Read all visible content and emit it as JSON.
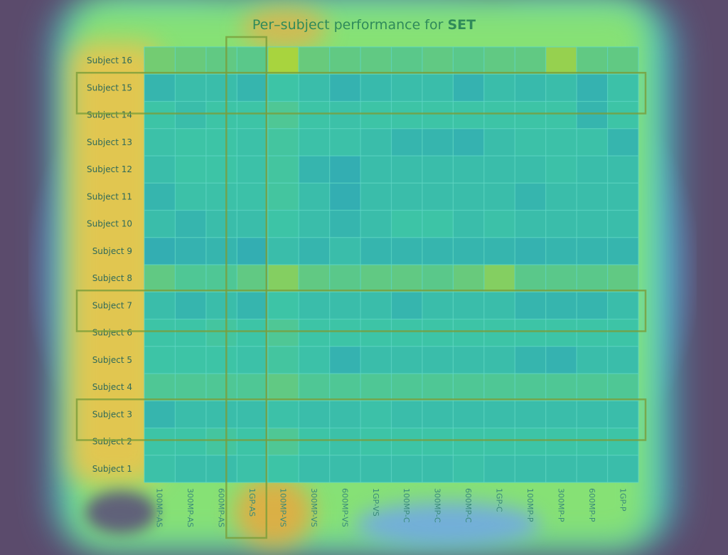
{
  "chart_data": {
    "type": "heatmap",
    "title_prefix": "Per–subject performance for ",
    "title_emph": "SET",
    "rows": [
      "Subject 16",
      "Subject 15",
      "Subject 14",
      "Subject 13",
      "Subject 12",
      "Subject 11",
      "Subject 10",
      "Subject 9",
      "Subject 8",
      "Subject 7",
      "Subject 6",
      "Subject 5",
      "Subject 4",
      "Subject 3",
      "Subject 2",
      "Subject 1"
    ],
    "columns": [
      "100MP-AS",
      "300MP-AS",
      "600MP-AS",
      "1GP-AS",
      "100MP-VS",
      "300MP-VS",
      "600MP-VS",
      "1GP-VS",
      "100MP-C",
      "300MP-C",
      "600MP-C",
      "1GP-C",
      "100MP-P",
      "300MP-P",
      "600MP-P",
      "1GP-P"
    ],
    "values": [
      [
        0.55,
        0.52,
        0.5,
        0.48,
        0.7,
        0.52,
        0.5,
        0.5,
        0.48,
        0.5,
        0.48,
        0.5,
        0.5,
        0.65,
        0.5,
        0.5
      ],
      [
        0.3,
        0.35,
        0.35,
        0.3,
        0.4,
        0.35,
        0.28,
        0.33,
        0.35,
        0.35,
        0.28,
        0.35,
        0.33,
        0.35,
        0.28,
        0.38
      ],
      [
        0.4,
        0.35,
        0.4,
        0.4,
        0.45,
        0.4,
        0.38,
        0.4,
        0.4,
        0.4,
        0.4,
        0.4,
        0.4,
        0.4,
        0.3,
        0.4
      ],
      [
        0.38,
        0.4,
        0.4,
        0.38,
        0.42,
        0.38,
        0.38,
        0.35,
        0.3,
        0.3,
        0.28,
        0.35,
        0.38,
        0.38,
        0.38,
        0.3
      ],
      [
        0.35,
        0.4,
        0.4,
        0.38,
        0.42,
        0.3,
        0.25,
        0.35,
        0.35,
        0.35,
        0.35,
        0.35,
        0.35,
        0.38,
        0.35,
        0.35
      ],
      [
        0.3,
        0.38,
        0.38,
        0.38,
        0.42,
        0.35,
        0.25,
        0.35,
        0.35,
        0.35,
        0.35,
        0.35,
        0.3,
        0.35,
        0.35,
        0.35
      ],
      [
        0.35,
        0.3,
        0.35,
        0.35,
        0.4,
        0.35,
        0.3,
        0.35,
        0.4,
        0.4,
        0.35,
        0.38,
        0.35,
        0.35,
        0.35,
        0.35
      ],
      [
        0.25,
        0.28,
        0.3,
        0.25,
        0.35,
        0.3,
        0.35,
        0.3,
        0.3,
        0.3,
        0.3,
        0.3,
        0.28,
        0.3,
        0.3,
        0.3
      ],
      [
        0.5,
        0.45,
        0.45,
        0.5,
        0.6,
        0.5,
        0.48,
        0.5,
        0.5,
        0.48,
        0.52,
        0.6,
        0.48,
        0.48,
        0.48,
        0.5
      ],
      [
        0.35,
        0.3,
        0.35,
        0.3,
        0.4,
        0.35,
        0.35,
        0.35,
        0.3,
        0.35,
        0.35,
        0.35,
        0.3,
        0.3,
        0.3,
        0.35
      ],
      [
        0.4,
        0.4,
        0.42,
        0.4,
        0.45,
        0.4,
        0.4,
        0.4,
        0.4,
        0.4,
        0.4,
        0.4,
        0.4,
        0.4,
        0.4,
        0.4
      ],
      [
        0.4,
        0.4,
        0.4,
        0.38,
        0.42,
        0.38,
        0.28,
        0.35,
        0.35,
        0.35,
        0.35,
        0.35,
        0.3,
        0.28,
        0.35,
        0.35
      ],
      [
        0.45,
        0.45,
        0.45,
        0.45,
        0.5,
        0.45,
        0.45,
        0.45,
        0.45,
        0.45,
        0.45,
        0.45,
        0.45,
        0.45,
        0.45,
        0.45
      ],
      [
        0.3,
        0.35,
        0.35,
        0.35,
        0.38,
        0.35,
        0.35,
        0.38,
        0.35,
        0.35,
        0.35,
        0.35,
        0.35,
        0.35,
        0.35,
        0.35
      ],
      [
        0.4,
        0.4,
        0.42,
        0.4,
        0.45,
        0.4,
        0.38,
        0.4,
        0.4,
        0.4,
        0.4,
        0.4,
        0.4,
        0.4,
        0.4,
        0.4
      ],
      [
        0.38,
        0.35,
        0.35,
        0.38,
        0.4,
        0.35,
        0.35,
        0.35,
        0.35,
        0.35,
        0.38,
        0.35,
        0.35,
        0.35,
        0.35,
        0.35
      ]
    ],
    "highlight_rows": [
      "Subject 15",
      "Subject 7",
      "Subject 3"
    ],
    "highlight_columns": [
      "1GP-AS"
    ],
    "colors": {
      "title": "#2f8a5a",
      "row_label": "#2f6a5a",
      "col_label": "#3a8a7a",
      "grid_line": "#5fd6c6",
      "highlight_box": "#7a9e3a",
      "cell_low": "#2fa6b6",
      "cell_mid": "#3dc4a6",
      "cell_high": "#a8d43e"
    }
  }
}
